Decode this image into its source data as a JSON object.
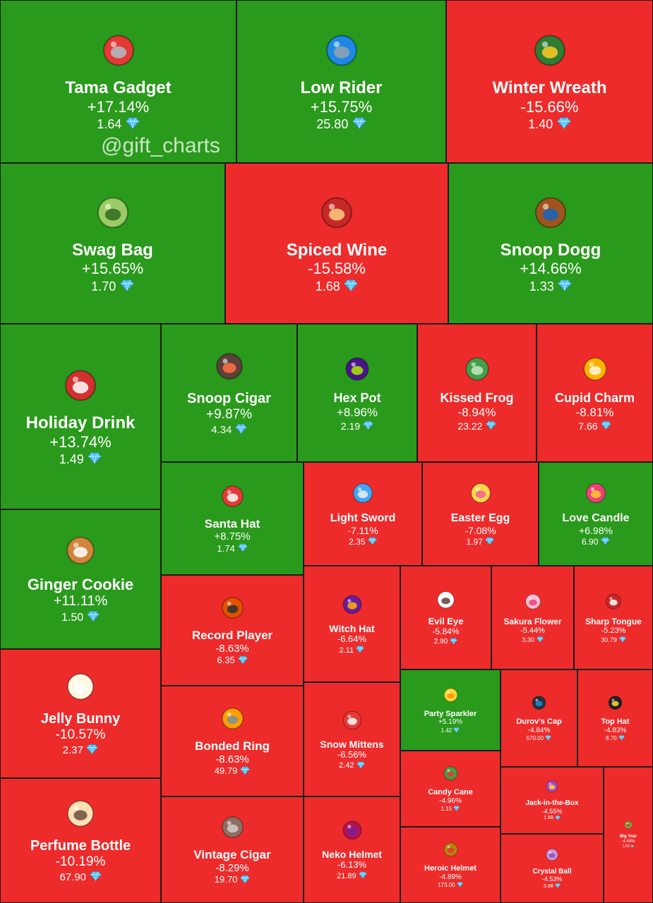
{
  "watermark": "@gift_charts",
  "colors": {
    "up": "#2a9a1c",
    "down": "#ee2b2b",
    "diamond": "#4fc3f7"
  },
  "chart_data": {
    "type": "treemap",
    "series_fields": [
      "name",
      "change",
      "price"
    ],
    "items": [
      {
        "name": "Tama Gadget",
        "change": "+17.14%",
        "price": "1.64",
        "icon": "tamagotchi-icon"
      },
      {
        "name": "Low Rider",
        "change": "+15.75%",
        "price": "25.80",
        "icon": "lowrider-car-icon"
      },
      {
        "name": "Winter Wreath",
        "change": "-15.66%",
        "price": "1.40",
        "icon": "wreath-icon"
      },
      {
        "name": "Swag Bag",
        "change": "+15.65%",
        "price": "1.70",
        "icon": "swag-bag-icon"
      },
      {
        "name": "Spiced Wine",
        "change": "-15.58%",
        "price": "1.68",
        "icon": "wine-glass-icon"
      },
      {
        "name": "Snoop Dogg",
        "change": "+14.66%",
        "price": "1.33",
        "icon": "dog-icon"
      },
      {
        "name": "Holiday Drink",
        "change": "+13.74%",
        "price": "1.49",
        "icon": "holiday-drink-icon"
      },
      {
        "name": "Snoop Cigar",
        "change": "+9.87%",
        "price": "4.34",
        "icon": "cigar-icon"
      },
      {
        "name": "Hex Pot",
        "change": "+8.96%",
        "price": "2.19",
        "icon": "cauldron-icon"
      },
      {
        "name": "Kissed Frog",
        "change": "-8.94%",
        "price": "23.22",
        "icon": "frog-icon"
      },
      {
        "name": "Cupid Charm",
        "change": "-8.81%",
        "price": "7.66",
        "icon": "heart-charm-icon"
      },
      {
        "name": "Santa Hat",
        "change": "+8.75%",
        "price": "1.74",
        "icon": "santa-hat-icon"
      },
      {
        "name": "Light Sword",
        "change": "-7.11%",
        "price": "2.35",
        "icon": "light-sword-icon"
      },
      {
        "name": "Easter Egg",
        "change": "-7.08%",
        "price": "1.97",
        "icon": "easter-egg-icon"
      },
      {
        "name": "Love Candle",
        "change": "+6.98%",
        "price": "6.90",
        "icon": "candle-icon"
      },
      {
        "name": "Ginger Cookie",
        "change": "+11.11%",
        "price": "1.50",
        "icon": "gingerbread-icon"
      },
      {
        "name": "Record Player",
        "change": "-8.63%",
        "price": "6.35",
        "icon": "record-player-icon"
      },
      {
        "name": "Witch Hat",
        "change": "-6.64%",
        "price": "2.11",
        "icon": "witch-hat-icon"
      },
      {
        "name": "Evil Eye",
        "change": "-5.84%",
        "price": "2.90",
        "icon": "eye-icon"
      },
      {
        "name": "Sakura Flower",
        "change": "-5.44%",
        "price": "3.30",
        "icon": "sakura-icon"
      },
      {
        "name": "Sharp Tongue",
        "change": "-5.23%",
        "price": "30.79",
        "icon": "lips-icon"
      },
      {
        "name": "Party Sparkler",
        "change": "+5.19%",
        "price": "1.42",
        "icon": "sparkler-icon"
      },
      {
        "name": "Durov's Cap",
        "change": "-4.84%",
        "price": "570.00",
        "icon": "cap-icon"
      },
      {
        "name": "Top Hat",
        "change": "-4.83%",
        "price": "8.70",
        "icon": "top-hat-icon"
      },
      {
        "name": "Jelly Bunny",
        "change": "-10.57%",
        "price": "2.37",
        "icon": "jelly-bunny-icon"
      },
      {
        "name": "Bonded Ring",
        "change": "-8.63%",
        "price": "49.79",
        "icon": "ring-icon"
      },
      {
        "name": "Snow Mittens",
        "change": "-6.56%",
        "price": "2.42",
        "icon": "mittens-icon"
      },
      {
        "name": "Candy Cane",
        "change": "-4.96%",
        "price": "1.15",
        "icon": "candy-cane-icon"
      },
      {
        "name": "Jack-in-the-Box",
        "change": "-4.55%",
        "price": "1.68",
        "icon": "jack-box-icon"
      },
      {
        "name": "Big Year",
        "change": "-4.46%",
        "price": "1.50",
        "icon": "big-year-icon"
      },
      {
        "name": "Perfume Bottle",
        "change": "-10.19%",
        "price": "67.90",
        "icon": "perfume-icon"
      },
      {
        "name": "Vintage Cigar",
        "change": "-8.29%",
        "price": "19.70",
        "icon": "vintage-cigar-icon"
      },
      {
        "name": "Neko Helmet",
        "change": "-6.13%",
        "price": "21.89",
        "icon": "helmet-icon"
      },
      {
        "name": "Heroic Helmet",
        "change": "-4.89%",
        "price": "173.00",
        "icon": "spartan-helmet-icon"
      },
      {
        "name": "Crystal Ball",
        "change": "-4.53%",
        "price": "5.88",
        "icon": "crystal-ball-icon"
      }
    ]
  }
}
